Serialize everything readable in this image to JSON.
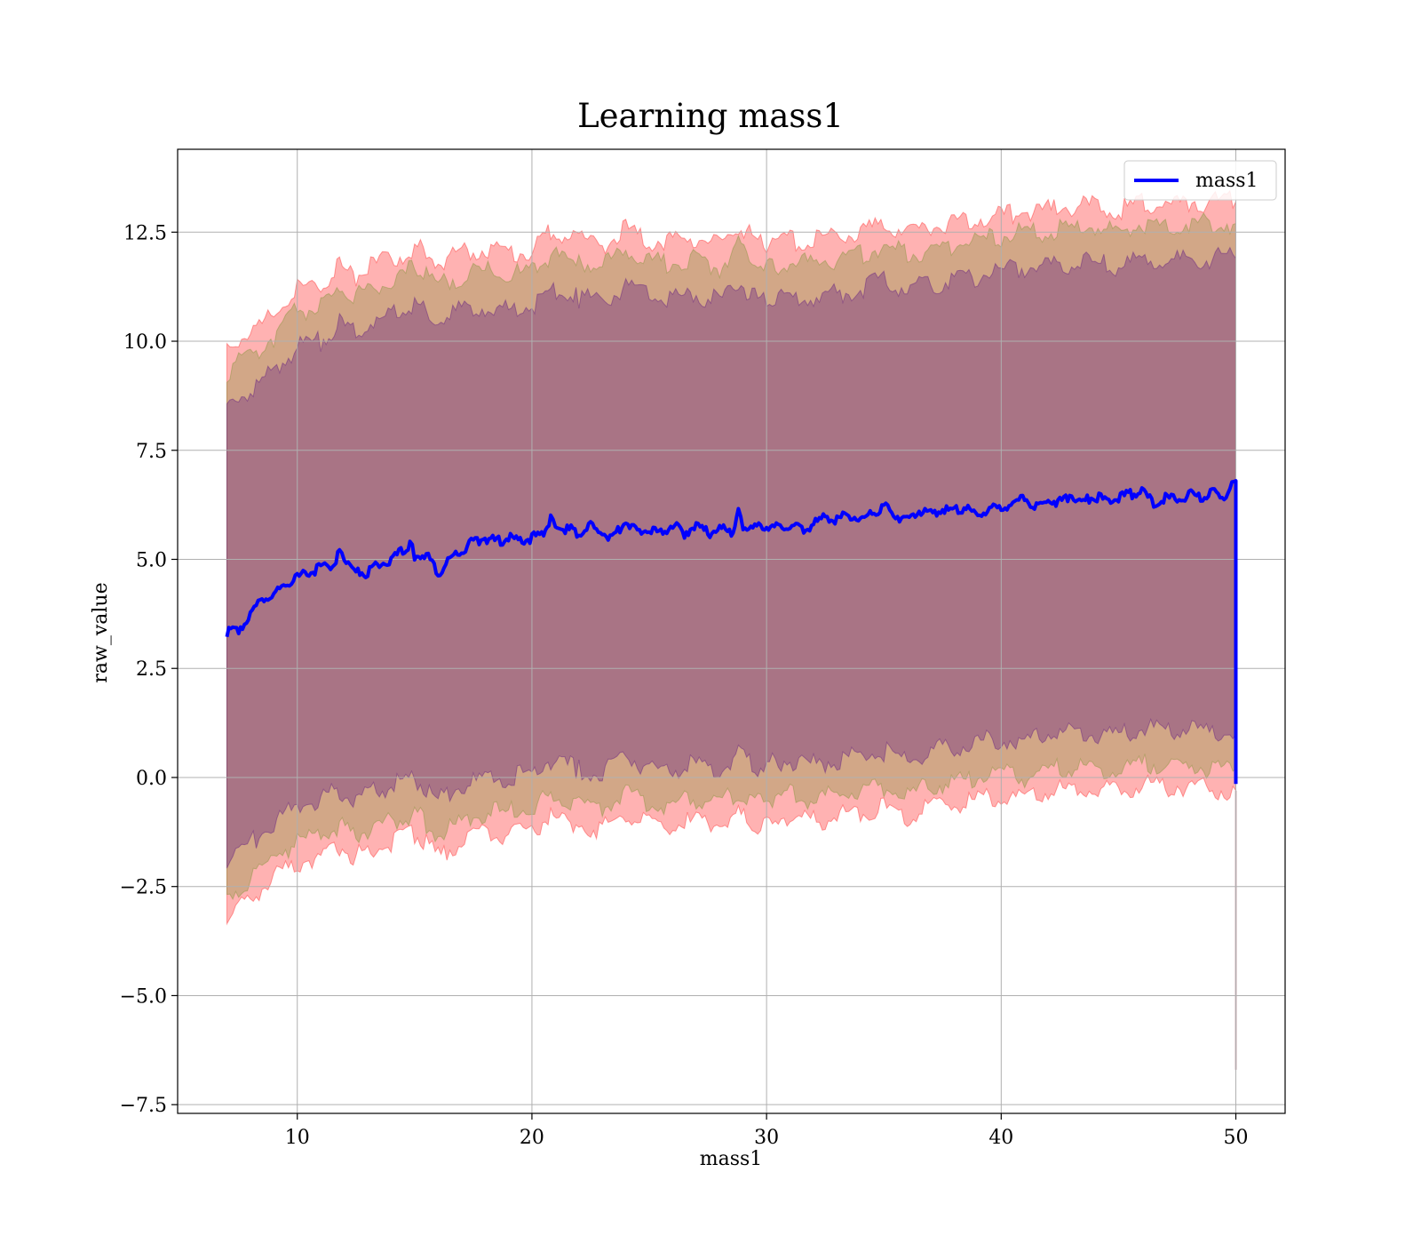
{
  "chart_data": {
    "type": "line",
    "title": "Learning mass1",
    "xlabel": "mass1",
    "ylabel": "raw_value",
    "xlim": [
      4.9,
      52.1
    ],
    "ylim": [
      -7.7,
      14.4
    ],
    "xticks": [
      10,
      20,
      30,
      40,
      50
    ],
    "xtick_labels": [
      "10",
      "20",
      "30",
      "40",
      "50"
    ],
    "yticks": [
      -7.5,
      -5.0,
      -2.5,
      0.0,
      2.5,
      5.0,
      7.5,
      10.0,
      12.5
    ],
    "ytick_labels": [
      "−7.5",
      "−5.0",
      "−2.5",
      "0.0",
      "2.5",
      "5.0",
      "7.5",
      "10.0",
      "12.5"
    ],
    "grid": true,
    "legend": {
      "placement": "top-right"
    },
    "series": [
      {
        "name": "mass1",
        "color": "#0000ff",
        "x": [
          7.0,
          7.5,
          8.0,
          8.5,
          9.0,
          9.5,
          10.0,
          10.5,
          11.0,
          11.5,
          11.8,
          12.0,
          12.5,
          13.0,
          13.5,
          14.0,
          14.5,
          14.8,
          15.0,
          15.5,
          16.0,
          16.5,
          17.0,
          17.5,
          18.0,
          18.5,
          19.0,
          19.5,
          20.0,
          20.5,
          20.8,
          21.0,
          21.5,
          22.0,
          22.5,
          23.0,
          23.5,
          24.0,
          24.5,
          25.0,
          25.5,
          26.0,
          26.5,
          27.0,
          27.5,
          28.0,
          28.5,
          28.8,
          29.0,
          29.5,
          30.0,
          30.5,
          31.0,
          31.5,
          32.0,
          32.5,
          33.0,
          33.5,
          34.0,
          34.5,
          35.0,
          35.5,
          36.0,
          36.5,
          37.0,
          37.5,
          38.0,
          38.5,
          39.0,
          39.5,
          40.0,
          40.5,
          41.0,
          41.5,
          42.0,
          42.5,
          43.0,
          43.5,
          44.0,
          44.5,
          45.0,
          45.5,
          46.0,
          46.5,
          47.0,
          47.5,
          48.0,
          48.5,
          49.0,
          49.5,
          50.0,
          50.0
        ],
        "y": [
          3.3,
          3.4,
          3.7,
          4.1,
          4.2,
          4.4,
          4.6,
          4.7,
          4.8,
          4.9,
          5.15,
          5.0,
          4.7,
          4.7,
          4.9,
          5.0,
          5.2,
          5.35,
          5.1,
          5.1,
          4.7,
          5.0,
          5.2,
          5.4,
          5.5,
          5.4,
          5.5,
          5.4,
          5.5,
          5.6,
          5.9,
          5.75,
          5.7,
          5.6,
          5.75,
          5.6,
          5.5,
          5.9,
          5.6,
          5.7,
          5.6,
          5.8,
          5.6,
          5.8,
          5.6,
          5.7,
          5.6,
          6.1,
          5.8,
          5.7,
          5.8,
          5.7,
          5.8,
          5.7,
          5.8,
          6.0,
          5.9,
          6.05,
          5.9,
          6.05,
          6.2,
          6.0,
          5.9,
          6.1,
          6.05,
          6.15,
          6.1,
          6.2,
          6.0,
          6.15,
          6.2,
          6.3,
          6.4,
          6.2,
          6.35,
          6.3,
          6.5,
          6.3,
          6.45,
          6.35,
          6.4,
          6.5,
          6.55,
          6.3,
          6.4,
          6.35,
          6.5,
          6.4,
          6.55,
          6.45,
          6.8,
          -0.15
        ]
      }
    ],
    "bands": [
      {
        "color": "#ff0000",
        "opacity": 0.3,
        "x": [
          7.0,
          8.0,
          9.0,
          10.0,
          11.0,
          11.8,
          12.5,
          13.5,
          14.5,
          15.0,
          16.0,
          17.0,
          18.0,
          19.0,
          20.0,
          20.8,
          22.0,
          23.0,
          24.0,
          25.0,
          26.0,
          27.0,
          28.0,
          28.8,
          29.5,
          30.0,
          31.0,
          32.0,
          33.0,
          34.0,
          35.0,
          36.0,
          37.0,
          38.0,
          39.0,
          40.0,
          41.0,
          42.0,
          43.0,
          44.0,
          45.0,
          46.0,
          47.0,
          48.0,
          49.0,
          50.0
        ],
        "upper": [
          9.9,
          10.2,
          10.6,
          11.2,
          11.3,
          11.7,
          11.5,
          11.8,
          12.0,
          12.2,
          11.8,
          12.0,
          12.1,
          12.0,
          12.1,
          12.5,
          12.3,
          12.2,
          12.6,
          12.3,
          12.3,
          12.4,
          12.2,
          12.7,
          12.3,
          12.2,
          12.3,
          12.3,
          12.4,
          12.5,
          12.7,
          12.5,
          12.6,
          12.7,
          12.8,
          12.9,
          13.0,
          13.0,
          13.1,
          13.1,
          13.0,
          13.2,
          13.1,
          13.2,
          13.2,
          13.2
        ],
        "lower": [
          -3.3,
          -2.8,
          -2.3,
          -2.0,
          -1.8,
          -1.6,
          -1.8,
          -1.6,
          -1.4,
          -1.3,
          -1.8,
          -1.5,
          -1.3,
          -1.3,
          -1.2,
          -0.9,
          -1.1,
          -1.2,
          -0.8,
          -1.1,
          -1.1,
          -1.0,
          -1.1,
          -0.8,
          -1.1,
          -1.0,
          -0.9,
          -1.0,
          -0.9,
          -0.8,
          -0.7,
          -0.9,
          -0.7,
          -0.6,
          -0.5,
          -0.4,
          -0.5,
          -0.3,
          -0.3,
          -0.3,
          -0.3,
          -0.2,
          -0.2,
          -0.2,
          -0.3,
          -0.3
        ]
      },
      {
        "color": "#6b8e23",
        "opacity": 0.3,
        "x": [
          7.0,
          8.0,
          9.0,
          10.0,
          11.0,
          11.8,
          12.5,
          13.5,
          14.5,
          15.0,
          16.0,
          17.0,
          18.0,
          19.0,
          20.0,
          20.8,
          22.0,
          23.0,
          24.0,
          25.0,
          26.0,
          27.0,
          28.0,
          28.8,
          29.5,
          30.0,
          31.0,
          32.0,
          33.0,
          34.0,
          35.0,
          36.0,
          37.0,
          38.0,
          39.0,
          40.0,
          41.0,
          42.0,
          43.0,
          44.0,
          45.0,
          46.0,
          47.0,
          48.0,
          49.0,
          50.0
        ],
        "upper": [
          9.3,
          9.7,
          10.1,
          10.7,
          10.8,
          11.2,
          11.0,
          11.3,
          11.5,
          11.7,
          11.3,
          11.5,
          11.6,
          11.5,
          11.6,
          12.0,
          11.8,
          11.7,
          12.1,
          11.8,
          11.8,
          11.9,
          11.7,
          12.2,
          11.8,
          11.7,
          11.8,
          11.8,
          11.9,
          12.0,
          12.2,
          12.0,
          12.1,
          12.2,
          12.3,
          12.4,
          12.5,
          12.5,
          12.6,
          12.6,
          12.5,
          12.7,
          12.6,
          12.7,
          12.7,
          12.7
        ],
        "lower": [
          -2.8,
          -2.3,
          -1.8,
          -1.5,
          -1.3,
          -1.1,
          -1.3,
          -1.1,
          -0.9,
          -0.8,
          -1.3,
          -1.0,
          -0.8,
          -0.8,
          -0.7,
          -0.4,
          -0.6,
          -0.7,
          -0.3,
          -0.6,
          -0.6,
          -0.5,
          -0.6,
          -0.3,
          -0.6,
          -0.5,
          -0.4,
          -0.5,
          -0.4,
          -0.3,
          -0.2,
          -0.4,
          -0.2,
          -0.1,
          0.0,
          0.1,
          0.0,
          0.2,
          0.2,
          0.2,
          0.2,
          0.3,
          0.3,
          0.3,
          0.2,
          0.2
        ]
      },
      {
        "color": "#4b0082",
        "opacity": 0.3,
        "x": [
          7.0,
          8.0,
          9.0,
          10.0,
          11.0,
          11.8,
          12.5,
          13.5,
          14.5,
          15.0,
          16.0,
          17.0,
          18.0,
          19.0,
          20.0,
          20.8,
          22.0,
          23.0,
          24.0,
          25.0,
          26.0,
          27.0,
          28.0,
          28.8,
          29.5,
          30.0,
          31.0,
          32.0,
          33.0,
          34.0,
          35.0,
          36.0,
          37.0,
          38.0,
          39.0,
          40.0,
          41.0,
          42.0,
          43.0,
          44.0,
          45.0,
          46.0,
          47.0,
          48.0,
          49.0,
          50.0
        ],
        "upper": [
          8.5,
          8.9,
          9.3,
          9.9,
          10.0,
          10.4,
          10.2,
          10.5,
          10.7,
          10.9,
          10.5,
          10.7,
          10.8,
          10.7,
          10.8,
          11.2,
          11.0,
          10.9,
          11.3,
          11.0,
          11.0,
          11.1,
          10.9,
          11.4,
          11.0,
          10.9,
          11.0,
          11.0,
          11.1,
          11.2,
          11.4,
          11.2,
          11.3,
          11.4,
          11.5,
          11.6,
          11.7,
          11.7,
          11.8,
          11.8,
          11.7,
          11.9,
          11.8,
          11.9,
          11.9,
          11.9
        ],
        "lower": [
          -1.9,
          -1.5,
          -1.0,
          -0.7,
          -0.5,
          -0.3,
          -0.5,
          -0.3,
          -0.1,
          0.0,
          -0.5,
          -0.2,
          0.0,
          0.0,
          0.1,
          0.4,
          0.2,
          0.1,
          0.5,
          0.2,
          0.2,
          0.3,
          0.2,
          0.5,
          0.2,
          0.3,
          0.4,
          0.3,
          0.4,
          0.5,
          0.6,
          0.4,
          0.6,
          0.7,
          0.8,
          0.9,
          0.8,
          1.0,
          1.0,
          1.0,
          1.0,
          1.1,
          1.1,
          1.1,
          1.0,
          1.0
        ]
      }
    ],
    "end_spike": {
      "x": 50.0,
      "y_min": -6.7,
      "y_max": -0.3
    }
  }
}
